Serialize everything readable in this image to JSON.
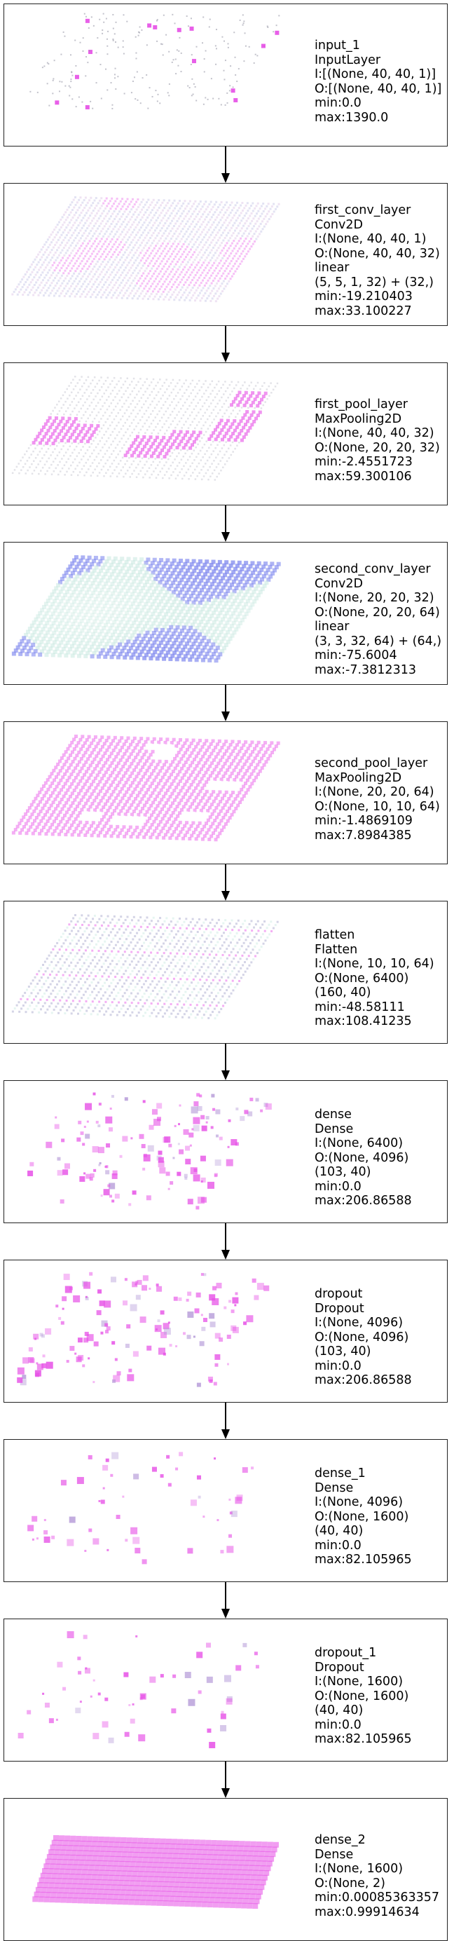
{
  "colors": {
    "pink": "#e64ee6",
    "blue": "#7f88ee",
    "border": "#222222"
  },
  "layers": [
    {
      "name": "input_1",
      "type": "InputLayer",
      "lines": [
        "input_1",
        "InputLayer",
        "I:[(None, 40, 40, 1)]",
        "O:[(None, 40, 40, 1)]",
        "min:0.0",
        "max:1390.0"
      ],
      "viz": "sparse-pixels"
    },
    {
      "name": "first_conv_layer",
      "type": "Conv2D",
      "lines": [
        "first_conv_layer",
        "Conv2D",
        "I:(None, 40, 40, 1)",
        "O:(None, 40, 40, 32)",
        "linear",
        "(5, 5, 1, 32) + (32,)",
        "min:-19.210403",
        "max:33.100227"
      ],
      "viz": "grid-pale"
    },
    {
      "name": "first_pool_layer",
      "type": "MaxPooling2D",
      "lines": [
        "first_pool_layer",
        "MaxPooling2D",
        "I:(None, 40, 40, 32)",
        "O:(None, 20, 20, 32)",
        "min:-2.4551723",
        "max:59.300106"
      ],
      "viz": "grid-blobs"
    },
    {
      "name": "second_conv_layer",
      "type": "Conv2D",
      "lines": [
        "second_conv_layer",
        "Conv2D",
        "I:(None, 20, 20, 32)",
        "O:(None, 20, 20, 64)",
        "linear",
        "(3, 3, 32, 64) + (64,)",
        "min:-75.6004",
        "max:-7.3812313"
      ],
      "viz": "grid-blue"
    },
    {
      "name": "second_pool_layer",
      "type": "MaxPooling2D",
      "lines": [
        "second_pool_layer",
        "MaxPooling2D",
        "I:(None, 20, 20, 64)",
        "O:(None, 10, 10, 64)",
        "min:-1.4869109",
        "max:7.8984385"
      ],
      "viz": "grid-pink-holes"
    },
    {
      "name": "flatten",
      "type": "Flatten",
      "lines": [
        "flatten",
        "Flatten",
        "I:(None, 10, 10, 64)",
        "O:(None, 6400)",
        "(160, 40)",
        "min:-48.58111",
        "max:108.41235"
      ],
      "viz": "grid-stripes"
    },
    {
      "name": "dense",
      "type": "Dense",
      "lines": [
        "dense",
        "Dense",
        "I:(None, 6400)",
        "O:(None, 4096)",
        "(103, 40)",
        "min:0.0",
        "max:206.86588"
      ],
      "viz": "sparse-squares"
    },
    {
      "name": "dropout",
      "type": "Dropout",
      "lines": [
        "dropout",
        "Dropout",
        "I:(None, 4096)",
        "O:(None, 4096)",
        "(103, 40)",
        "min:0.0",
        "max:206.86588"
      ],
      "viz": "sparse-squares"
    },
    {
      "name": "dense_1",
      "type": "Dense",
      "lines": [
        "dense_1",
        "Dense",
        "I:(None, 4096)",
        "O:(None, 1600)",
        "(40, 40)",
        "min:0.0",
        "max:82.105965"
      ],
      "viz": "sparse-few"
    },
    {
      "name": "dropout_1",
      "type": "Dropout",
      "lines": [
        "dropout_1",
        "Dropout",
        "I:(None, 1600)",
        "O:(None, 1600)",
        "(40, 40)",
        "min:0.0",
        "max:82.105965"
      ],
      "viz": "sparse-few"
    },
    {
      "name": "dense_2",
      "type": "Dense",
      "lines": [
        "dense_2",
        "Dense",
        "I:(None, 1600)",
        "O:(None, 2)",
        "min:0.00085363357",
        "max:0.99914634"
      ],
      "viz": "solid-pink"
    }
  ]
}
